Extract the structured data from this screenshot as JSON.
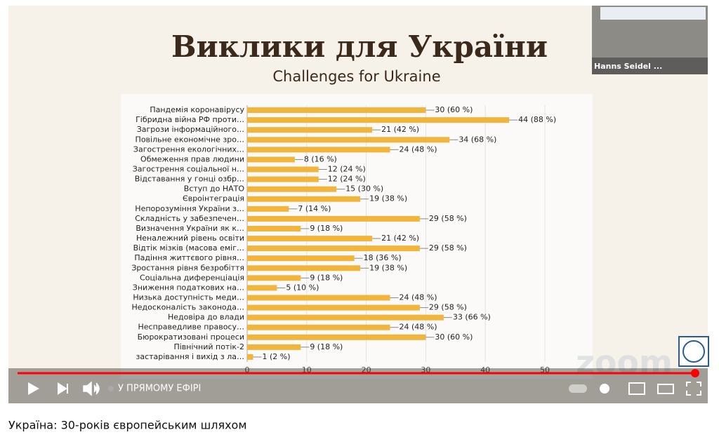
{
  "page_title": "Україна: 30-років європейським шляхом",
  "player": {
    "live_label": "У ПРЯМОМУ ЕФІРІ",
    "webcam_label": "Hanns Seidel ...",
    "watermark": "zoom"
  },
  "slide": {
    "title": "Виклики для України",
    "subtitle": "Challenges for Ukraine"
  },
  "chart_data": {
    "type": "hbar",
    "categories": [
      "Пандемія коронавірусу",
      "Гібридна війна РФ проти…",
      "Загрози інформаційного…",
      "Повільне економічне зро…",
      "Загострення екологічних…",
      "Обмеження прав людини",
      "Загострення соціальної н…",
      "Відставання у гонці озбр…",
      "Вступ до НАТО",
      "Євроінтеграція",
      "Непорозуміння України з…",
      "Складність у забезпечен…",
      "Визначення України як к…",
      "Неналежний рівень освіти",
      "Відтік мізків (масова еміг…",
      "Падіння життєвого рівня…",
      "Зростання рівня безробіття",
      "Соціальна диференціація",
      "Зниження податкових на…",
      "Низька доступність меди…",
      "Недосконалість законода…",
      "Недовіра до влади",
      "Несправедливе правосу…",
      "Бюрократизовані процеси",
      "Північний потік-2",
      "застарівання і вихід з ла…"
    ],
    "values": [
      30,
      44,
      21,
      34,
      24,
      8,
      12,
      12,
      15,
      19,
      7,
      29,
      9,
      21,
      29,
      18,
      19,
      9,
      5,
      24,
      29,
      33,
      24,
      30,
      9,
      1
    ],
    "value_labels": [
      "30 (60 %)",
      "44 (88 %)",
      "21 (42 %)",
      "34 (68 %)",
      "24 (48 %)",
      "8 (16 %)",
      "12 (24 %)",
      "12 (24 %)",
      "15 (30 %)",
      "19 (38 %)",
      "7 (14 %)",
      "29 (58 %)",
      "9 (18 %)",
      "21 (42 %)",
      "29 (58 %)",
      "18 (36 %)",
      "19 (38 %)",
      "9 (18 %)",
      "5 (10 %)",
      "24 (48 %)",
      "29 (58 %)",
      "33 (66 %)",
      "24 (48 %)",
      "30 (60 %)",
      "9 (18 %)",
      "1 (2 %)"
    ],
    "color": "#f2b53c",
    "xlim": [
      0,
      50
    ],
    "xticks": [
      0,
      10,
      20,
      30,
      40,
      50
    ],
    "grid": true
  }
}
